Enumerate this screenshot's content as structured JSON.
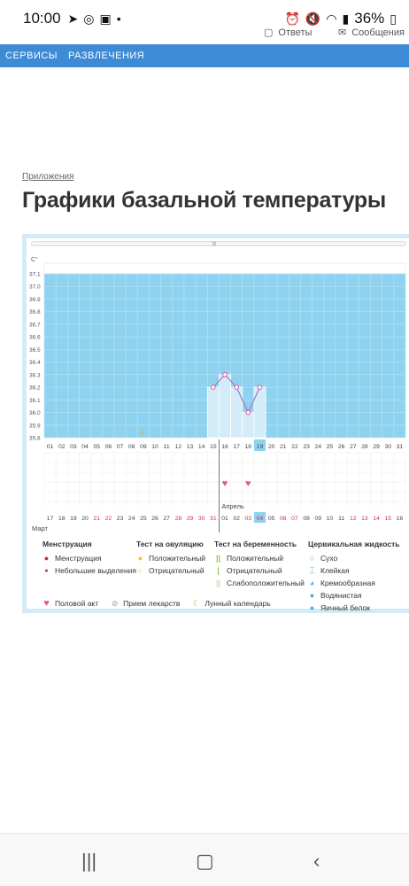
{
  "status_bar": {
    "time": "10:00",
    "battery": "36%",
    "dot": "•"
  },
  "top_strip": {
    "answers": "Ответы",
    "messages": "Сообщения"
  },
  "nav": {
    "services": "СЕРВИСЫ",
    "entertainment": "РАЗВЛЕЧЕНИЯ"
  },
  "breadcrumb": "Приложения",
  "title": "Графики базальной температуры",
  "chart_data": {
    "type": "line",
    "unit": "C°",
    "ylim": [
      35.8,
      37.1
    ],
    "y_ticks": [
      "37.1",
      "37.0",
      "36.9",
      "36.8",
      "36.7",
      "36.6",
      "36.5",
      "36.4",
      "36.3",
      "36.2",
      "36.1",
      "36.0",
      "35.9",
      "35.8"
    ],
    "day_labels": [
      "01",
      "02",
      "03",
      "04",
      "05",
      "06",
      "07",
      "08",
      "09",
      "10",
      "11",
      "12",
      "13",
      "14",
      "15",
      "16",
      "17",
      "18",
      "19",
      "20",
      "21",
      "22",
      "23",
      "24",
      "25",
      "26",
      "27",
      "28",
      "29",
      "30",
      "31"
    ],
    "highlight_day": "19",
    "moon_day": "09",
    "series": [
      {
        "x": [
          "15",
          "16",
          "17",
          "18",
          "19"
        ],
        "values": [
          36.2,
          36.3,
          36.2,
          36.0,
          36.2
        ]
      }
    ],
    "heart_days": [
      "16",
      "18"
    ],
    "date_labels": [
      "17",
      "18",
      "19",
      "20",
      "21",
      "22",
      "23",
      "24",
      "25",
      "26",
      "27",
      "28",
      "29",
      "30",
      "31",
      "01",
      "02",
      "03",
      "04",
      "05",
      "06",
      "07",
      "08",
      "09",
      "10",
      "11",
      "12",
      "13",
      "14",
      "15",
      "16"
    ],
    "red_date_indices": [
      4,
      5,
      11,
      12,
      13,
      14,
      17,
      18,
      20,
      21,
      26,
      27,
      28,
      29
    ],
    "highlight_date_index": 18,
    "month_left": "Март",
    "month_right": "Апрель"
  },
  "legend": {
    "menstruation": {
      "head": "Менструация",
      "items": [
        "Менструация",
        "Небольшие выделения"
      ]
    },
    "ovulation": {
      "head": "Тест на овуляцию",
      "items": [
        "Положительный",
        "Отрицательный"
      ]
    },
    "pregnancy": {
      "head": "Тест на беременность",
      "items": [
        "Положительный",
        "Отрицательный",
        "Слабоположительный"
      ]
    },
    "cervical": {
      "head": "Цервикальная жидкость",
      "items": [
        "Сухо",
        "Клейкая",
        "Кремообразная",
        "Водянистая",
        "Яичный белок"
      ]
    },
    "bottom": [
      "Половой акт",
      "Прием лекарств",
      "Лунный календарь"
    ]
  },
  "colors": {
    "nav": "#3d8bd5",
    "chart_fill": "#8fd2f0",
    "bar_fill": "#d3ecf8",
    "line": "#9a86c8",
    "heart": "#ee4f9d",
    "red_date": "#d62b4d"
  }
}
